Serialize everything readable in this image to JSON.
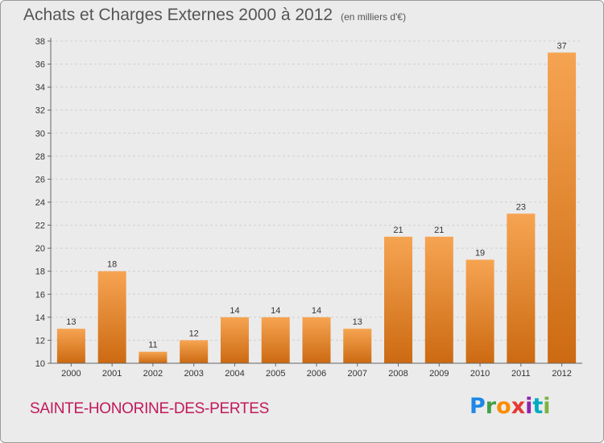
{
  "header": {
    "title": "Achats et Charges Externes 2000 à 2012",
    "subtitle": "(en milliers d'€)"
  },
  "footer": {
    "commune": "SAINTE-HONORINE-DES-PERTES",
    "logo_letters": [
      "P",
      "r",
      "o",
      "x",
      "i",
      "t",
      "i"
    ],
    "logo_colors": [
      "#1e88e5",
      "#43a047",
      "#fb8c00",
      "#e53935",
      "#8e24aa",
      "#00acc1",
      "#7cb342"
    ]
  },
  "colors": {
    "bar_top": "#f6a452",
    "bar_bottom": "#cc6a12",
    "grid": "#d0d0d0",
    "axis": "#666666"
  },
  "chart_data": {
    "type": "bar",
    "categories": [
      "2000",
      "2001",
      "2002",
      "2003",
      "2004",
      "2005",
      "2006",
      "2007",
      "2008",
      "2009",
      "2010",
      "2011",
      "2012"
    ],
    "values": [
      13,
      18,
      11,
      12,
      14,
      14,
      14,
      13,
      21,
      21,
      19,
      23,
      37
    ],
    "yticks": [
      10,
      12,
      14,
      16,
      18,
      20,
      22,
      24,
      26,
      28,
      30,
      32,
      34,
      36,
      38
    ],
    "ylim": [
      10,
      38
    ],
    "grid": "horizontal dashed",
    "legend": false
  }
}
